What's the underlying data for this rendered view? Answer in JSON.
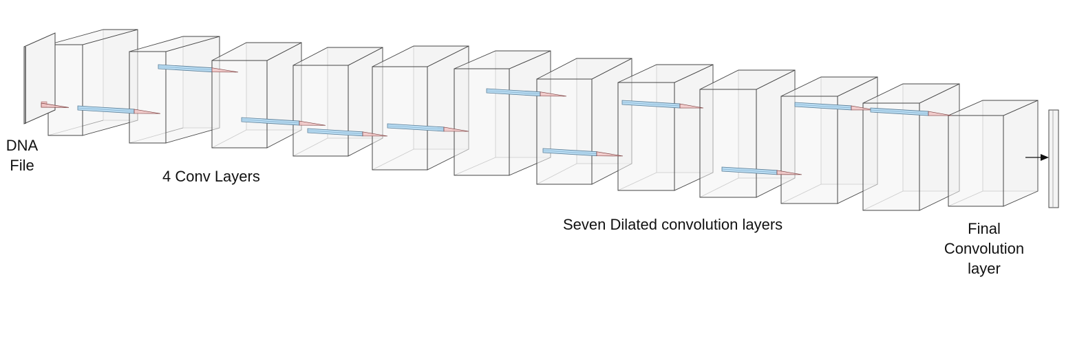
{
  "labels": {
    "dna": [
      "DNA",
      "File"
    ],
    "conv": "4 Conv Layers",
    "dilated": "Seven Dilated convolution layers",
    "final": [
      "Final",
      "Convolution",
      "layer"
    ]
  },
  "colors": {
    "edge": "#444444",
    "edge_faint": "#9a9a9a",
    "face": "#f2f2f2",
    "kernel_blue": "#b9dcf2",
    "kernel_pink": "#f0c4c4",
    "arrow": "#111111"
  },
  "diagram": {
    "input_slab_count": 1,
    "conv_layer_count": 4,
    "dilated_layer_count": 7,
    "final_layer_count": 1,
    "output_slab_count": 1
  }
}
